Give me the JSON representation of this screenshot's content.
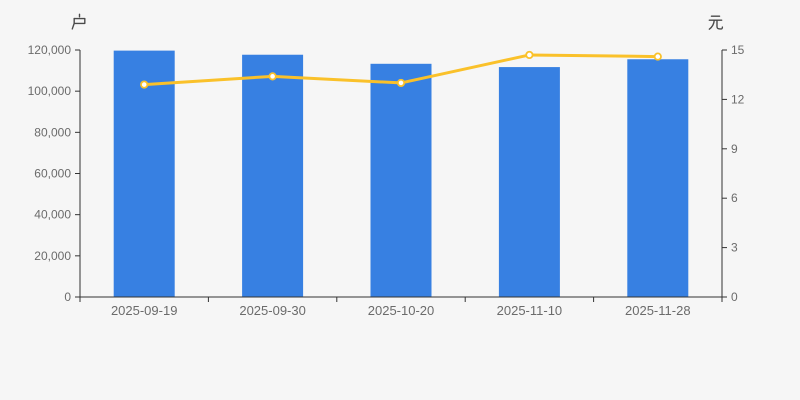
{
  "chart_data": {
    "type": "bar",
    "subtype": "bar-plus-line-dual-axis",
    "title": "",
    "categories": [
      "2025-09-19",
      "2025-09-30",
      "2025-10-20",
      "2025-11-10",
      "2025-11-28"
    ],
    "series": [
      {
        "type": "bar",
        "axis": "left",
        "unit": "户",
        "color": "#3780e2",
        "values": [
          119700,
          117700,
          113300,
          111700,
          115500
        ]
      },
      {
        "type": "line",
        "axis": "right",
        "unit": "元",
        "color": "#fac12a",
        "marker_fill": "#ffffff",
        "values": [
          12.9,
          13.4,
          13.0,
          14.7,
          14.6
        ]
      }
    ],
    "left_axis": {
      "unit": "户",
      "min": 0,
      "max": 120000,
      "interval": 20000,
      "tick_labels": [
        "0",
        "20,000",
        "40,000",
        "60,000",
        "80,000",
        "100,000",
        "120,000"
      ]
    },
    "right_axis": {
      "unit": "元",
      "min": 0,
      "max": 15,
      "interval": 3,
      "tick_labels": [
        "0",
        "3",
        "6",
        "9",
        "12",
        "15"
      ]
    },
    "grid_lines": false,
    "legend": false,
    "background": "#f6f6f6",
    "axis_line_color": "#333333",
    "tick_text_color": "#6b6b6b",
    "unit_text_color": "#4a4a4a"
  }
}
